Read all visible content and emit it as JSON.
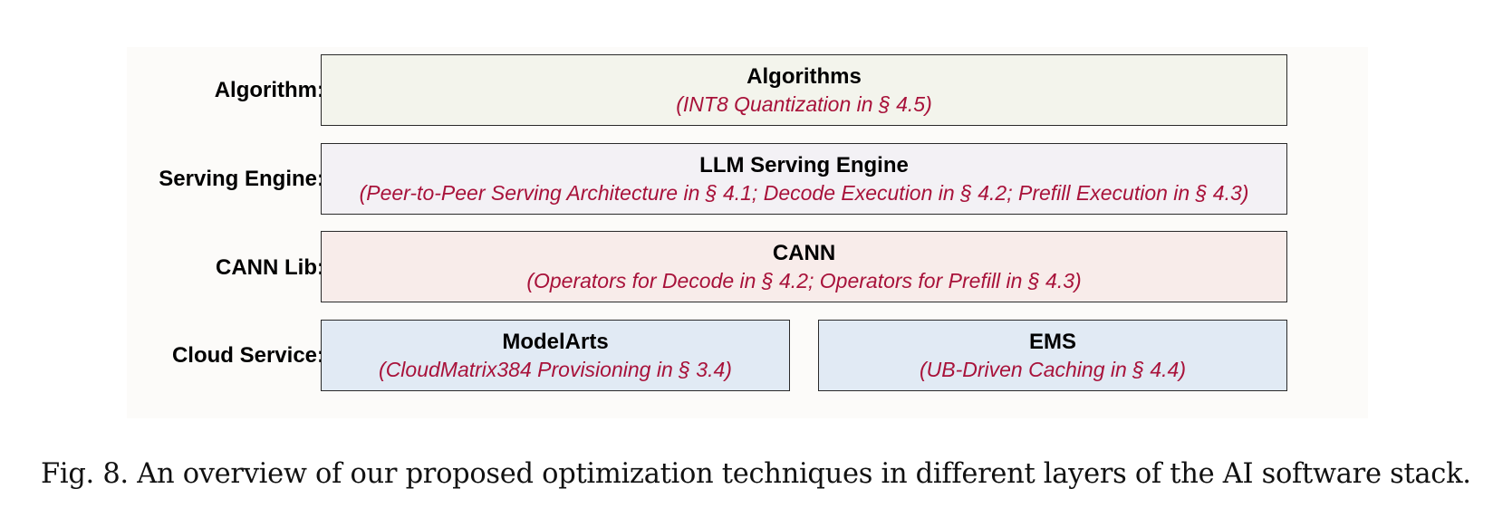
{
  "layers": [
    {
      "label": "Algorithm:",
      "color": "#f3f4ec",
      "boxes": [
        {
          "title": "Algorithms",
          "subtitle": "(INT8 Quantization in § 4.5)"
        }
      ]
    },
    {
      "label": "Serving Engine:",
      "color": "#f3f1f5",
      "boxes": [
        {
          "title": "LLM Serving Engine",
          "subtitle": "(Peer-to-Peer Serving Architecture in § 4.1; Decode Execution in § 4.2; Prefill Execution in § 4.3)"
        }
      ]
    },
    {
      "label": "CANN Lib:",
      "color": "#f8ecea",
      "boxes": [
        {
          "title": "CANN",
          "subtitle": "(Operators for Decode in § 4.2; Operators for Prefill in § 4.3)"
        }
      ]
    },
    {
      "label": "Cloud Service:",
      "color": "#e1eaf4",
      "boxes": [
        {
          "title": "ModelArts",
          "subtitle": "(CloudMatrix384 Provisioning in § 3.4)"
        },
        {
          "title": "EMS",
          "subtitle": "(UB-Driven Caching in § 4.4)"
        }
      ]
    }
  ],
  "caption": "Fig. 8.  An overview of our proposed optimization techniques in different layers of the AI software stack."
}
